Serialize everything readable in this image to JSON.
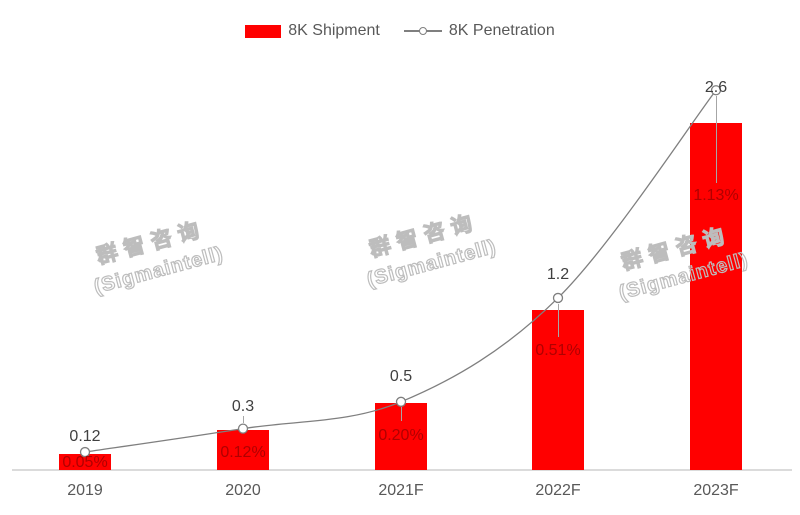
{
  "legend": {
    "shipment_label": "8K Shipment",
    "penetration_label": "8K Penetration"
  },
  "watermark": {
    "line1": "群智咨询",
    "line2": "(Sigmaintell)",
    "repetitions": 3
  },
  "colors": {
    "bar_red": "#FF0000",
    "penetration_label_red": "#B00000",
    "line_gray": "#7F7F7F",
    "value_label_gray": "#404040",
    "axis_label_gray": "#595959",
    "axis_line_gray": "#DBDBDB",
    "watermark_gray": "#BDBDBD"
  },
  "chart_data": {
    "type": "bar",
    "subtype": "combo-bar-line",
    "title": "",
    "categories": [
      "2019",
      "2020",
      "2021F",
      "2022F",
      "2023F"
    ],
    "series": [
      {
        "name": "8K Shipment",
        "type": "bar",
        "values": [
          0.12,
          0.3,
          0.5,
          1.2,
          2.6
        ],
        "labels": [
          "0.12",
          "0.3",
          "0.5",
          "1.2",
          "2.6"
        ],
        "color": "#FF0000",
        "label_color": "#404040"
      },
      {
        "name": "8K Penetration",
        "type": "line",
        "unit": "%",
        "values": [
          0.05,
          0.12,
          0.2,
          0.51,
          1.13
        ],
        "labels": [
          "0.05%",
          "0.12%",
          "0.20%",
          "0.51%",
          "1.13%"
        ],
        "color": "#7F7F7F",
        "marker": "open-circle",
        "label_color": "#B00000"
      }
    ],
    "legend_position": "top",
    "grid": false,
    "y_axes_visible": false,
    "xlabel": "",
    "ylabel": ""
  }
}
